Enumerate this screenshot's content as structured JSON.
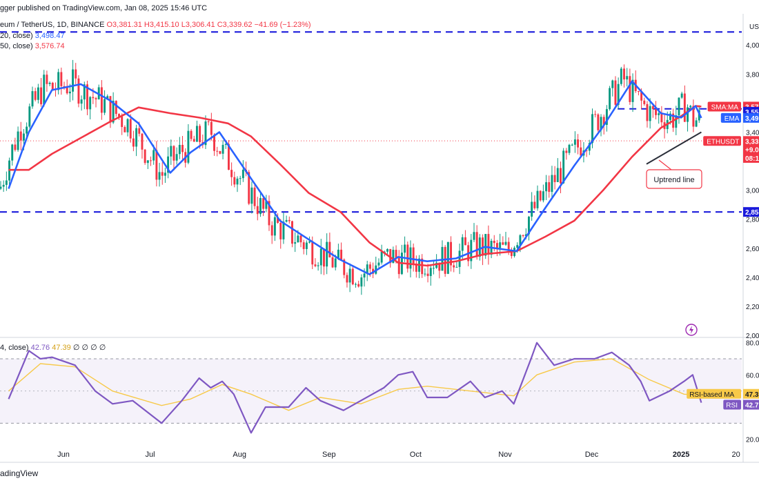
{
  "header": {
    "published": "gger published on TradingView.com, Jan 08, 2025 15:46 UTC"
  },
  "legend": {
    "symbol": "eum / TetherUS, 1D, BINANCE",
    "open": "O3,381.31",
    "high": "H3,415.10",
    "low": "L3,306.41",
    "close": "C3,339.62",
    "change": "−41.69 (−1.23%)",
    "ema_label": "20, close)",
    "ema_value": "3,498.47",
    "sma_label": "50, close)",
    "sma_value": "3,576.74"
  },
  "rsi_legend": {
    "label": "4, close)",
    "rsi_value": "42.76",
    "ma_value": "47.39",
    "extra": "∅ ∅ ∅ ∅"
  },
  "watermark": "adingView",
  "colors": {
    "up": "#089981",
    "down": "#f23645",
    "ema": "#2962ff",
    "sma": "#f23645",
    "level": "#1a1adb",
    "trend": "#2a2e39",
    "rsi": "#7e57c2",
    "rsi_ma": "#f7c948",
    "rsi_band": "#ede7f6"
  },
  "price_axis": {
    "currency": "USD",
    "ticks": [
      "4,000",
      "3,800",
      "3,400",
      "3,000",
      "2,800",
      "2,600",
      "2,400",
      "2,200",
      "2,000"
    ],
    "labels": [
      {
        "text": "3,57",
        "tag": "SMA:MA",
        "color": "#f23645"
      },
      {
        "text": "3,55",
        "tag": "",
        "color": "#1a1adb"
      },
      {
        "text": "3,49",
        "tag": "EMA",
        "color": "#2962ff"
      },
      {
        "text": "3,33",
        "tag": "ETHUSDT",
        "color": "#f23645"
      },
      {
        "text": "+9.0",
        "tag": "",
        "color": "#f23645"
      },
      {
        "text": "08:1",
        "tag": "",
        "color": "#f23645"
      },
      {
        "text": "2,85",
        "tag": "",
        "color": "#1a1adb"
      }
    ]
  },
  "rsi_axis": {
    "ticks": [
      "80.00",
      "60.00",
      "20.00"
    ],
    "labels": [
      {
        "text": "47.3",
        "tag": "RSI-based MA",
        "color": "#f7c948"
      },
      {
        "text": "42.7",
        "tag": "RSI",
        "color": "#7e57c2"
      }
    ]
  },
  "annotation": {
    "text": "Uptrend line"
  },
  "chart_data": {
    "type": "candlestick",
    "x_labels": [
      "Jun",
      "Jul",
      "Aug",
      "Sep",
      "Oct",
      "Nov",
      "Dec",
      "2025",
      "20"
    ],
    "levels": [
      4090,
      2850,
      3560
    ],
    "ema": [
      [
        "2024-05-13",
        3010
      ],
      [
        "2024-05-20",
        3400
      ],
      [
        "2024-05-28",
        3690
      ],
      [
        "2024-06-07",
        3730
      ],
      [
        "2024-06-17",
        3620
      ],
      [
        "2024-06-27",
        3460
      ],
      [
        "2024-07-08",
        3120
      ],
      [
        "2024-07-15",
        3260
      ],
      [
        "2024-07-25",
        3400
      ],
      [
        "2024-08-05",
        3080
      ],
      [
        "2024-08-15",
        2790
      ],
      [
        "2024-08-25",
        2660
      ],
      [
        "2024-09-05",
        2520
      ],
      [
        "2024-09-15",
        2420
      ],
      [
        "2024-09-25",
        2540
      ],
      [
        "2024-10-05",
        2510
      ],
      [
        "2024-10-15",
        2530
      ],
      [
        "2024-10-25",
        2610
      ],
      [
        "2024-11-05",
        2580
      ],
      [
        "2024-11-15",
        2880
      ],
      [
        "2024-11-25",
        3170
      ],
      [
        "2024-12-05",
        3440
      ],
      [
        "2024-12-15",
        3750
      ],
      [
        "2024-12-25",
        3530
      ],
      [
        "2025-01-01",
        3500
      ],
      [
        "2025-01-06",
        3580
      ],
      [
        "2025-01-08",
        3498
      ]
    ],
    "sma": [
      [
        "2024-05-13",
        3140
      ],
      [
        "2024-05-20",
        3140
      ],
      [
        "2024-05-28",
        3250
      ],
      [
        "2024-06-07",
        3360
      ],
      [
        "2024-06-17",
        3470
      ],
      [
        "2024-06-27",
        3570
      ],
      [
        "2024-07-08",
        3530
      ],
      [
        "2024-07-18",
        3500
      ],
      [
        "2024-07-28",
        3460
      ],
      [
        "2024-08-05",
        3370
      ],
      [
        "2024-08-15",
        3180
      ],
      [
        "2024-08-25",
        2980
      ],
      [
        "2024-09-05",
        2850
      ],
      [
        "2024-09-15",
        2640
      ],
      [
        "2024-09-25",
        2500
      ],
      [
        "2024-10-05",
        2480
      ],
      [
        "2024-10-15",
        2510
      ],
      [
        "2024-10-25",
        2560
      ],
      [
        "2024-11-05",
        2580
      ],
      [
        "2024-11-15",
        2680
      ],
      [
        "2024-11-25",
        2790
      ],
      [
        "2024-12-05",
        3000
      ],
      [
        "2024-12-15",
        3230
      ],
      [
        "2024-12-25",
        3430
      ],
      [
        "2025-01-01",
        3510
      ],
      [
        "2025-01-06",
        3580
      ],
      [
        "2025-01-08",
        3576
      ]
    ],
    "trendline": [
      [
        "2024-12-20",
        3180
      ],
      [
        "2025-01-08",
        3400
      ]
    ],
    "rsi": [
      [
        "2024-05-13",
        45
      ],
      [
        "2024-05-20",
        75
      ],
      [
        "2024-05-24",
        70
      ],
      [
        "2024-05-28",
        71
      ],
      [
        "2024-06-05",
        66
      ],
      [
        "2024-06-12",
        50
      ],
      [
        "2024-06-18",
        42
      ],
      [
        "2024-06-25",
        44
      ],
      [
        "2024-07-05",
        30
      ],
      [
        "2024-07-12",
        44
      ],
      [
        "2024-07-18",
        58
      ],
      [
        "2024-07-22",
        52
      ],
      [
        "2024-07-26",
        56
      ],
      [
        "2024-07-30",
        48
      ],
      [
        "2024-08-05",
        24
      ],
      [
        "2024-08-10",
        40
      ],
      [
        "2024-08-18",
        40
      ],
      [
        "2024-08-24",
        52
      ],
      [
        "2024-08-29",
        44
      ],
      [
        "2024-09-06",
        38
      ],
      [
        "2024-09-12",
        44
      ],
      [
        "2024-09-20",
        52
      ],
      [
        "2024-09-25",
        60
      ],
      [
        "2024-09-30",
        62
      ],
      [
        "2024-10-05",
        46
      ],
      [
        "2024-10-12",
        46
      ],
      [
        "2024-10-20",
        56
      ],
      [
        "2024-10-25",
        46
      ],
      [
        "2024-10-31",
        50
      ],
      [
        "2024-11-04",
        42
      ],
      [
        "2024-11-10",
        70
      ],
      [
        "2024-11-12",
        80
      ],
      [
        "2024-11-18",
        66
      ],
      [
        "2024-11-25",
        70
      ],
      [
        "2024-12-02",
        70
      ],
      [
        "2024-12-08",
        74
      ],
      [
        "2024-12-14",
        66
      ],
      [
        "2024-12-18",
        56
      ],
      [
        "2024-12-21",
        44
      ],
      [
        "2024-12-28",
        50
      ],
      [
        "2025-01-02",
        56
      ],
      [
        "2025-01-05",
        60
      ],
      [
        "2025-01-08",
        42.76
      ]
    ],
    "rsi_ma": [
      [
        "2024-05-13",
        50
      ],
      [
        "2024-05-24",
        67
      ],
      [
        "2024-06-05",
        65
      ],
      [
        "2024-06-18",
        50
      ],
      [
        "2024-07-05",
        41
      ],
      [
        "2024-07-15",
        45
      ],
      [
        "2024-07-26",
        54
      ],
      [
        "2024-08-05",
        48
      ],
      [
        "2024-08-18",
        38
      ],
      [
        "2024-08-29",
        46
      ],
      [
        "2024-09-12",
        42
      ],
      [
        "2024-09-25",
        51
      ],
      [
        "2024-10-05",
        53
      ],
      [
        "2024-10-20",
        50
      ],
      [
        "2024-11-04",
        47
      ],
      [
        "2024-11-12",
        60
      ],
      [
        "2024-11-25",
        68
      ],
      [
        "2024-12-08",
        70
      ],
      [
        "2024-12-21",
        57
      ],
      [
        "2025-01-02",
        48
      ],
      [
        "2025-01-08",
        47.39
      ]
    ],
    "ylim_price": [
      2000,
      4120
    ],
    "ylim_rsi": [
      16,
      82
    ],
    "rsi_bands": [
      70,
      30
    ],
    "last_close": 3339.62
  }
}
